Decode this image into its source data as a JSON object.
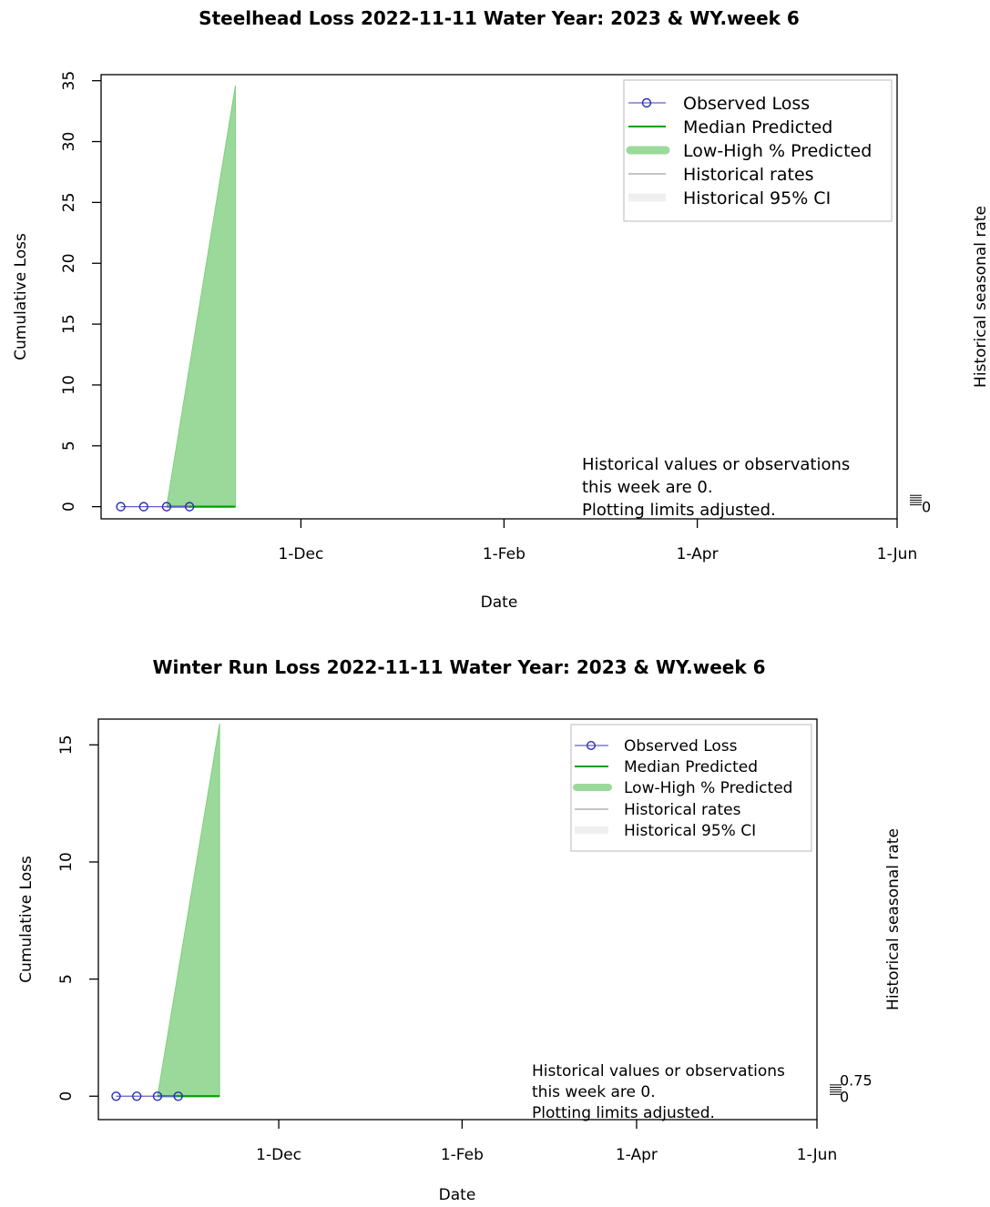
{
  "chart_data": [
    {
      "type": "line",
      "title": "Steelhead Loss 2022-11-11  Water Year: 2023 & WY.week 6",
      "xlabel": "Date",
      "ylabel": "Cumulative Loss",
      "y2label": "Historical seasonal rate",
      "x_ticks": [
        "1-Dec",
        "1-Feb",
        "1-Apr",
        "1-Jun"
      ],
      "x_tick_dates": [
        "2022-12-01",
        "2023-02-01",
        "2023-04-01",
        "2023-06-01"
      ],
      "xlim": [
        "2022-10-01",
        "2023-06-01"
      ],
      "ylim": [
        -1,
        35.5
      ],
      "y_ticks": [
        0,
        5,
        10,
        15,
        20,
        25,
        30,
        35
      ],
      "y2_ticks": [
        "0"
      ],
      "y2_tick_values": [
        0
      ],
      "legend_position": "top-right",
      "legend": [
        "Observed Loss",
        "Median Predicted",
        "Low-High % Predicted",
        "Historical rates",
        "Historical 95% CI"
      ],
      "series": [
        {
          "name": "Observed Loss",
          "kind": "points-line",
          "color": "#2a2ab5",
          "x": [
            "2022-10-07",
            "2022-10-14",
            "2022-10-21",
            "2022-10-28"
          ],
          "y": [
            0,
            0,
            0,
            0
          ]
        },
        {
          "name": "Median Predicted",
          "kind": "line",
          "color": "#00a000",
          "x": [
            "2022-10-21",
            "2022-11-11"
          ],
          "y": [
            0,
            0
          ]
        },
        {
          "name": "Low-High % Predicted",
          "kind": "band",
          "color": "#9ad99a",
          "x": [
            "2022-10-21",
            "2022-11-11"
          ],
          "low": [
            0,
            0
          ],
          "high": [
            0,
            34.6
          ]
        }
      ],
      "annotation": [
        "Historical values or observations",
        "this week are 0.",
        "Plotting limits adjusted."
      ]
    },
    {
      "type": "line",
      "title": "Winter Run Loss 2022-11-11  Water Year: 2023 & WY.week 6",
      "xlabel": "Date",
      "ylabel": "Cumulative Loss",
      "y2label": "Historical seasonal rate",
      "x_ticks": [
        "1-Dec",
        "1-Feb",
        "1-Apr",
        "1-Jun"
      ],
      "x_tick_dates": [
        "2022-12-01",
        "2023-02-01",
        "2023-04-01",
        "2023-06-01"
      ],
      "xlim": [
        "2022-10-01",
        "2023-06-01"
      ],
      "ylim": [
        -1,
        16.1
      ],
      "y_ticks": [
        0,
        5,
        10,
        15
      ],
      "y2_ticks": [
        "0.75",
        "0"
      ],
      "y2_tick_values": [
        0.75,
        0
      ],
      "legend_position": "top-right",
      "legend": [
        "Observed Loss",
        "Median Predicted",
        "Low-High % Predicted",
        "Historical rates",
        "Historical 95% CI"
      ],
      "series": [
        {
          "name": "Observed Loss",
          "kind": "points-line",
          "color": "#2a2ab5",
          "x": [
            "2022-10-07",
            "2022-10-14",
            "2022-10-21",
            "2022-10-28"
          ],
          "y": [
            0,
            0,
            0,
            0
          ]
        },
        {
          "name": "Median Predicted",
          "kind": "line",
          "color": "#00a000",
          "x": [
            "2022-10-21",
            "2022-11-11"
          ],
          "y": [
            0,
            0
          ]
        },
        {
          "name": "Low-High % Predicted",
          "kind": "band",
          "color": "#9ad99a",
          "x": [
            "2022-10-21",
            "2022-11-11"
          ],
          "low": [
            0,
            0
          ],
          "high": [
            0,
            15.9
          ]
        }
      ],
      "annotation": [
        "Historical values or observations",
        "this week are 0.",
        "Plotting limits adjusted."
      ]
    }
  ]
}
